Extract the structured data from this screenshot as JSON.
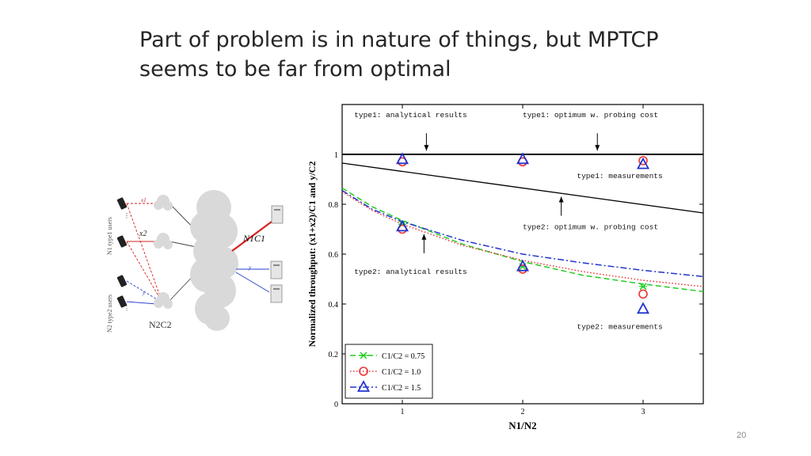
{
  "slide": {
    "title_line1": "Part of problem is in nature of things, but MPTCP",
    "title_line2": "seems to be far from optimal",
    "page_number": "20"
  },
  "diagram": {
    "group1_label": "N1 type1 users",
    "group2_label": "N2 type2 users",
    "x1_label": "x1",
    "x2_label": "x2",
    "y_label": "y",
    "n1c1_label": "N1C1",
    "n2c2_label": "N2C2",
    "colors": {
      "type1": "#d62020",
      "type2": "#2a3fd0"
    }
  },
  "chart_data": {
    "type": "line",
    "xlabel": "N1/N2",
    "ylabel": "Normalized throughput: (x1+x2)/C1 and y/C2",
    "xlim": [
      0.5,
      3.5
    ],
    "ylim": [
      0,
      1.2
    ],
    "xticks": [
      1,
      2,
      3
    ],
    "yticks": [
      0,
      0.2,
      0.4,
      0.6,
      0.8,
      1
    ],
    "legend_position": "bottom-left",
    "series": [
      {
        "name": "C1/C2 = 0.75",
        "color": "#22cc22",
        "style": "dashed",
        "marker": "x",
        "curve_x": [
          0.5,
          0.75,
          1.0,
          1.5,
          2.0,
          2.5,
          3.0,
          3.5
        ],
        "curve_y": [
          0.865,
          0.79,
          0.735,
          0.64,
          0.57,
          0.515,
          0.48,
          0.45
        ],
        "measured_x": [
          1,
          2,
          3
        ],
        "measured_y": [
          0.72,
          0.55,
          0.47
        ]
      },
      {
        "name": "C1/C2 = 1.0",
        "color": "#ee3333",
        "style": "dotted",
        "marker": "circle",
        "curve_x": [
          0.5,
          0.75,
          1.0,
          1.5,
          2.0,
          2.5,
          3.0,
          3.5
        ],
        "curve_y": [
          0.85,
          0.775,
          0.72,
          0.635,
          0.575,
          0.53,
          0.495,
          0.47
        ],
        "measured_x": [
          1,
          2,
          3,
          1,
          2,
          3
        ],
        "measured_y": [
          0.97,
          0.97,
          0.975,
          0.7,
          0.54,
          0.44
        ]
      },
      {
        "name": "C1/C2 = 1.5",
        "color": "#2233cc",
        "style": "dashdot",
        "marker": "triangle",
        "curve_x": [
          0.5,
          0.75,
          1.0,
          1.5,
          2.0,
          2.5,
          3.0,
          3.5
        ],
        "curve_y": [
          0.855,
          0.78,
          0.73,
          0.655,
          0.6,
          0.565,
          0.535,
          0.51
        ],
        "measured_x": [
          1,
          2,
          3,
          1,
          2,
          3
        ],
        "measured_y": [
          0.98,
          0.98,
          0.96,
          0.71,
          0.55,
          0.38
        ]
      }
    ],
    "reference_lines": [
      {
        "name": "type1: analytical results",
        "x": [
          0.5,
          3.5
        ],
        "y": [
          1.0,
          1.0
        ],
        "color": "#000000",
        "width": 2
      },
      {
        "name": "type2: optimum w. probing cost",
        "x": [
          0.5,
          3.5
        ],
        "y": [
          0.965,
          0.765
        ],
        "color": "#000000",
        "width": 1.3
      }
    ],
    "annotations": [
      {
        "text": "type1: analytical results",
        "x": 0.6,
        "y": 1.15,
        "arrow_to": [
          1.2,
          1.015
        ]
      },
      {
        "text": "type1: optimum w. probing cost",
        "x": 2.0,
        "y": 1.15,
        "arrow_to": [
          2.62,
          1.015
        ]
      },
      {
        "text": "type1: measurements",
        "x": 2.45,
        "y": 0.905
      },
      {
        "text": "type2: optimum w. probing cost",
        "x": 2.0,
        "y": 0.7,
        "arrow_to": [
          2.32,
          0.83
        ]
      },
      {
        "text": "type2: analytical results",
        "x": 0.6,
        "y": 0.52,
        "arrow_to": [
          1.18,
          0.68
        ]
      },
      {
        "text": "type2: measurements",
        "x": 2.45,
        "y": 0.3
      }
    ]
  }
}
